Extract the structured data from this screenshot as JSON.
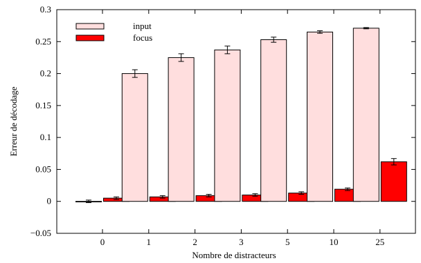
{
  "chart_data": {
    "type": "bar",
    "xlabel": "Nombre de distracteurs",
    "ylabel": "Erreur de décodage",
    "categories": [
      "0",
      "1",
      "2",
      "3",
      "5",
      "10",
      "25"
    ],
    "ylim": [
      -0.05,
      0.3
    ],
    "yticks": [
      -0.05,
      0,
      0.05,
      0.1,
      0.15,
      0.2,
      0.25,
      0.3
    ],
    "ytick_labels": [
      "−0.05",
      "0",
      "0.05",
      "0.1",
      "0.15",
      "0.2",
      "0.25",
      "0.3"
    ],
    "grid": false,
    "legend_position": "top-left",
    "series": [
      {
        "name": "input",
        "color": "#ffdede",
        "values": [
          0.0,
          0.2,
          0.225,
          0.237,
          0.253,
          0.265,
          0.271
        ],
        "errors": [
          0.002,
          0.006,
          0.006,
          0.006,
          0.004,
          0.002,
          0.001
        ]
      },
      {
        "name": "focus",
        "color": "#ff0000",
        "values": [
          0.005,
          0.007,
          0.009,
          0.01,
          0.013,
          0.019,
          0.062
        ],
        "errors": [
          0.002,
          0.002,
          0.002,
          0.002,
          0.002,
          0.002,
          0.005
        ]
      }
    ]
  }
}
